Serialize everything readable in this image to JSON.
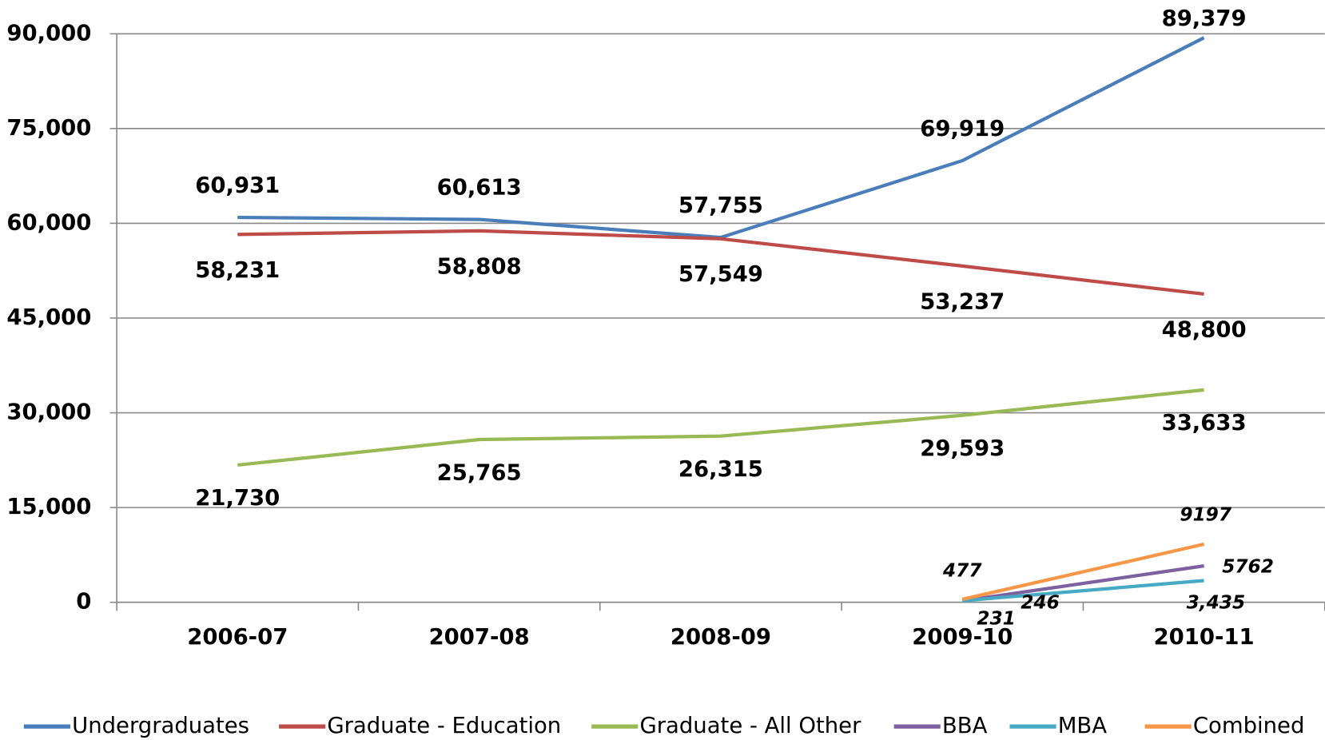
{
  "chart_data": {
    "type": "line",
    "categories": [
      "2006-07",
      "2007-08",
      "2008-09",
      "2009-10",
      "2010-11"
    ],
    "series": [
      {
        "name": "Undergraduates",
        "color": "#4a7ebb",
        "values": [
          60931,
          60613,
          57755,
          69919,
          89379
        ],
        "value_labels": [
          "60,931",
          "60,613",
          "57,755",
          "69,919",
          "89,379"
        ]
      },
      {
        "name": "Graduate - Education",
        "color": "#be4b48",
        "values": [
          58231,
          58808,
          57549,
          53237,
          48800
        ],
        "value_labels": [
          "58,231",
          "58,808",
          "57,549",
          "53,237",
          "48,800"
        ]
      },
      {
        "name": "Graduate - All Other",
        "color": "#98b954",
        "values": [
          21730,
          25765,
          26315,
          29593,
          33633
        ],
        "value_labels": [
          "21,730",
          "25,765",
          "26,315",
          "29,593",
          "33,633"
        ]
      },
      {
        "name": "BBA",
        "color": "#7d60a0",
        "values": [
          null,
          null,
          null,
          231,
          5762
        ]
      },
      {
        "name": "MBA",
        "color": "#46aac5",
        "values": [
          null,
          null,
          null,
          246,
          3435
        ],
        "value_labels": [
          null,
          null,
          null,
          "246",
          "3,435"
        ]
      },
      {
        "name": "Combined",
        "color": "#f79646",
        "values": [
          null,
          null,
          null,
          477,
          9197
        ]
      }
    ],
    "ylim": [
      0,
      90000
    ],
    "yticks": [
      {
        "value": 0,
        "label": "0"
      },
      {
        "value": 15000,
        "label": "15,000"
      },
      {
        "value": 30000,
        "label": "30,000"
      },
      {
        "value": 45000,
        "label": "45,000"
      },
      {
        "value": 60000,
        "label": "60,000"
      },
      {
        "value": 75000,
        "label": "75,000"
      },
      {
        "value": 90000,
        "label": "90,000"
      }
    ],
    "grid": true,
    "legend": "bottom"
  }
}
